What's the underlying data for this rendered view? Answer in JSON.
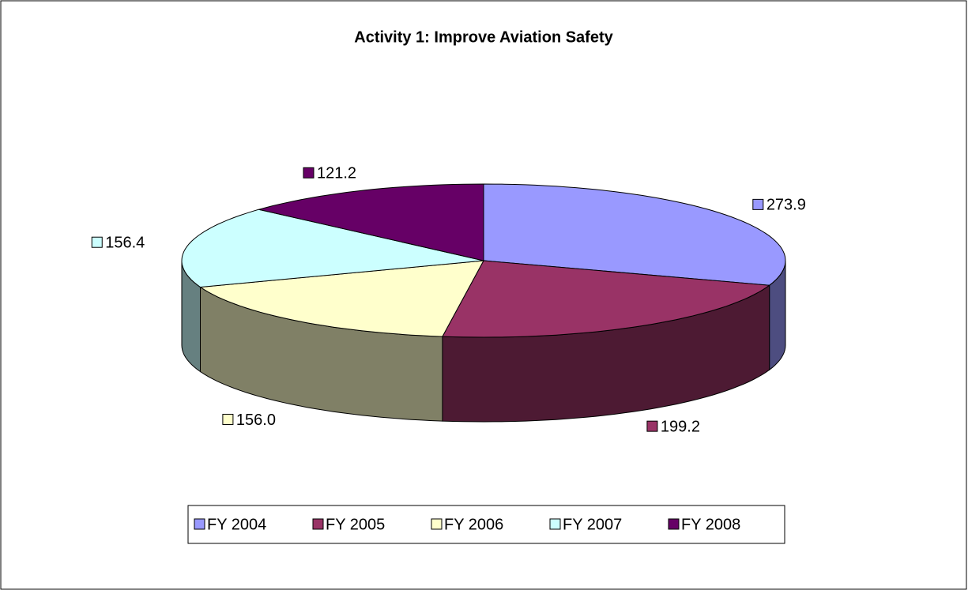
{
  "chart_data": {
    "type": "pie3d",
    "title": "Activity 1: Improve Aviation Safety",
    "categories": [
      "FY 2004",
      "FY 2005",
      "FY 2006",
      "FY 2007",
      "FY 2008"
    ],
    "values": [
      273.9,
      199.2,
      156.0,
      156.4,
      121.2
    ],
    "value_labels": [
      "273.9",
      "199.2",
      "156.0",
      "156.4",
      "121.2"
    ],
    "colors": [
      "#9999ff",
      "#993366",
      "#ffffcc",
      "#ccffff",
      "#660066"
    ],
    "legend": "bottom"
  }
}
